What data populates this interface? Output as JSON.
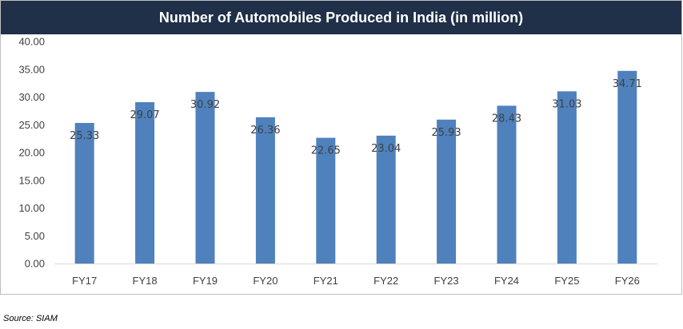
{
  "chart_data": {
    "type": "bar",
    "title": "Number of Automobiles Produced in India (in million)",
    "categories": [
      "FY17",
      "FY18",
      "FY19",
      "FY20",
      "FY21",
      "FY22",
      "FY23",
      "FY24",
      "FY25",
      "FY26"
    ],
    "values": [
      25.33,
      29.07,
      30.92,
      26.36,
      22.65,
      23.04,
      25.93,
      28.43,
      31.03,
      34.71
    ],
    "value_labels": [
      "25.33",
      "29.07",
      "30.92",
      "26.36",
      "22.65",
      "23.04",
      "25.93",
      "28.43",
      "31.03",
      "34.71"
    ],
    "ylim": [
      0,
      40
    ],
    "yticks": [
      "0.00",
      "5.00",
      "10.00",
      "15.00",
      "20.00",
      "25.00",
      "30.00",
      "35.00",
      "40.00"
    ],
    "xlabel": "",
    "ylabel": "",
    "grid": false,
    "legend": "none",
    "bar_color": "#4f81bd",
    "title_bar_color": "#1f3048"
  },
  "source_note": "Source: SIAM"
}
